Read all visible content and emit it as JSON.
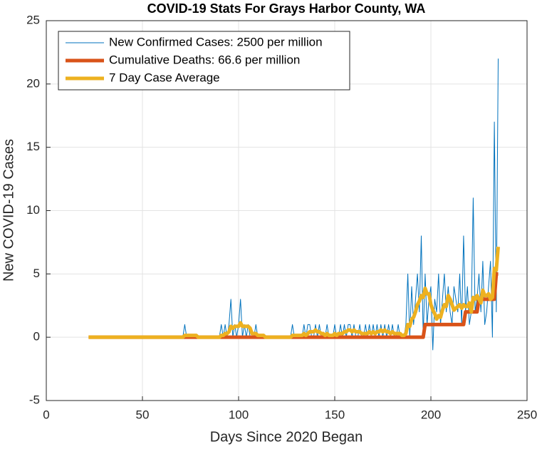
{
  "chart_data": {
    "type": "line",
    "title": "COVID-19 Stats For Grays Harbor County, WA",
    "x_label": "Days Since 2020 Began",
    "y_label": "New COVID-19 Cases",
    "xlim": [
      0,
      250
    ],
    "xticks": [
      0,
      50,
      100,
      150,
      200,
      250
    ],
    "ylim": [
      -5,
      25
    ],
    "yticks": [
      -5,
      0,
      5,
      10,
      15,
      20,
      25
    ],
    "grid": true,
    "legend": "upper left",
    "x": [
      22,
      23,
      24,
      25,
      26,
      27,
      28,
      29,
      30,
      31,
      32,
      33,
      34,
      35,
      36,
      37,
      38,
      39,
      40,
      41,
      42,
      43,
      44,
      45,
      46,
      47,
      48,
      49,
      50,
      51,
      52,
      53,
      54,
      55,
      56,
      57,
      58,
      59,
      60,
      61,
      62,
      63,
      64,
      65,
      66,
      67,
      68,
      69,
      70,
      71,
      72,
      73,
      74,
      75,
      76,
      77,
      78,
      79,
      80,
      81,
      82,
      83,
      84,
      85,
      86,
      87,
      88,
      89,
      90,
      91,
      92,
      93,
      94,
      95,
      96,
      97,
      98,
      99,
      100,
      101,
      102,
      103,
      104,
      105,
      106,
      107,
      108,
      109,
      110,
      111,
      112,
      113,
      114,
      115,
      116,
      117,
      118,
      119,
      120,
      121,
      122,
      123,
      124,
      125,
      126,
      127,
      128,
      129,
      130,
      131,
      132,
      133,
      134,
      135,
      136,
      137,
      138,
      139,
      140,
      141,
      142,
      143,
      144,
      145,
      146,
      147,
      148,
      149,
      150,
      151,
      152,
      153,
      154,
      155,
      156,
      157,
      158,
      159,
      160,
      161,
      162,
      163,
      164,
      165,
      166,
      167,
      168,
      169,
      170,
      171,
      172,
      173,
      174,
      175,
      176,
      177,
      178,
      179,
      180,
      181,
      182,
      183,
      184,
      185,
      186,
      187,
      188,
      189,
      190,
      191,
      192,
      193,
      194,
      195,
      196,
      197,
      198,
      199,
      200,
      201,
      202,
      203,
      204,
      205,
      206,
      207,
      208,
      209,
      210,
      211,
      212,
      213,
      214,
      215,
      216,
      217,
      218,
      219,
      220,
      221,
      222,
      223,
      224,
      225,
      226,
      227,
      228,
      229,
      230,
      231,
      232,
      233,
      234,
      235
    ],
    "series": [
      {
        "name": "New Confirmed Cases: 2500 per million",
        "color": "#0072BD",
        "width": 1,
        "values": [
          0,
          0,
          0,
          0,
          0,
          0,
          0,
          0,
          0,
          0,
          0,
          0,
          0,
          0,
          0,
          0,
          0,
          0,
          0,
          0,
          0,
          0,
          0,
          0,
          0,
          0,
          0,
          0,
          0,
          0,
          0,
          0,
          0,
          0,
          0,
          0,
          0,
          0,
          0,
          0,
          0,
          0,
          0,
          0,
          0,
          0,
          0,
          0,
          0,
          0,
          1,
          0,
          0,
          0,
          0,
          0,
          0,
          0,
          0,
          0,
          0,
          0,
          0,
          0,
          0,
          0,
          0,
          0,
          0,
          1,
          0,
          1,
          0,
          1,
          3,
          0,
          1,
          0,
          1,
          3,
          0,
          1,
          0,
          1,
          0,
          0,
          0,
          1,
          0,
          0,
          0,
          0,
          0,
          0,
          0,
          0,
          0,
          0,
          0,
          0,
          0,
          0,
          0,
          0,
          0,
          0,
          1,
          0,
          0,
          0,
          0,
          0,
          1,
          0,
          1,
          1,
          0,
          0,
          1,
          0,
          1,
          0,
          0,
          0,
          1,
          0,
          0,
          0,
          1,
          0,
          0,
          1,
          0,
          1,
          0,
          1,
          1,
          0,
          1,
          0,
          0,
          1,
          0,
          0,
          1,
          0,
          1,
          0,
          1,
          0,
          1,
          0,
          1,
          0,
          1,
          0,
          1,
          0,
          1,
          0,
          0,
          1,
          0,
          0,
          0,
          1,
          5,
          0,
          4,
          1,
          3,
          5,
          2,
          8,
          0,
          5,
          1,
          3,
          4,
          -1,
          3,
          2,
          5,
          1,
          3,
          5,
          2,
          4,
          2,
          1,
          4,
          3,
          2,
          5,
          1,
          8,
          2,
          4,
          1,
          2,
          11,
          2,
          3,
          5,
          2,
          6,
          1,
          2,
          4,
          6,
          0,
          17,
          2,
          22
        ]
      },
      {
        "name": "Cumulative Deaths: 66.6 per million",
        "color": "#D95319",
        "width": 5,
        "values": [
          0,
          0,
          0,
          0,
          0,
          0,
          0,
          0,
          0,
          0,
          0,
          0,
          0,
          0,
          0,
          0,
          0,
          0,
          0,
          0,
          0,
          0,
          0,
          0,
          0,
          0,
          0,
          0,
          0,
          0,
          0,
          0,
          0,
          0,
          0,
          0,
          0,
          0,
          0,
          0,
          0,
          0,
          0,
          0,
          0,
          0,
          0,
          0,
          0,
          0,
          0,
          0,
          0,
          0,
          0,
          0,
          0,
          0,
          0,
          0,
          0,
          0,
          0,
          0,
          0,
          0,
          0,
          0,
          0,
          0,
          0,
          0,
          0,
          0,
          0,
          0,
          0,
          0,
          0,
          0,
          0,
          0,
          0,
          0,
          0,
          0,
          0,
          0,
          0,
          0,
          0,
          0,
          0,
          0,
          0,
          0,
          0,
          0,
          0,
          0,
          0,
          0,
          0,
          0,
          0,
          0,
          0,
          0,
          0,
          0,
          0,
          0,
          0,
          0,
          0,
          0,
          0,
          0,
          0,
          0,
          0,
          0,
          0,
          0,
          0,
          0,
          0,
          0,
          0,
          0,
          0,
          0,
          0,
          0,
          0,
          0,
          0,
          0,
          0,
          0,
          0,
          0,
          0,
          0,
          0,
          0,
          0,
          0,
          0,
          0,
          0,
          0,
          0,
          0,
          0,
          0,
          0,
          0,
          0,
          0,
          0,
          0,
          0,
          0,
          0,
          0,
          0,
          0,
          0,
          0,
          0,
          0,
          0,
          0,
          0,
          1,
          1,
          1,
          1,
          1,
          1,
          1,
          1,
          1,
          1,
          1,
          1,
          1,
          1,
          1,
          1,
          1,
          1,
          1,
          1,
          1,
          2,
          2,
          2,
          2,
          2,
          2,
          2,
          3,
          3,
          3,
          3,
          3,
          3,
          3,
          3,
          3,
          5,
          5
        ]
      },
      {
        "name": "7 Day Case Average",
        "color": "#EDB120",
        "width": 5,
        "values": [
          0,
          0,
          0,
          0,
          0,
          0,
          0,
          0,
          0,
          0,
          0,
          0,
          0,
          0,
          0,
          0,
          0,
          0,
          0,
          0,
          0,
          0,
          0,
          0,
          0,
          0,
          0,
          0,
          0,
          0,
          0,
          0,
          0,
          0,
          0,
          0,
          0,
          0,
          0,
          0,
          0,
          0,
          0,
          0,
          0,
          0,
          0,
          0,
          0,
          0,
          0.14,
          0.14,
          0.14,
          0.14,
          0.14,
          0.14,
          0.14,
          0,
          0,
          0,
          0,
          0,
          0,
          0,
          0,
          0,
          0,
          0,
          0,
          0.14,
          0.14,
          0.29,
          0.29,
          0.43,
          0.86,
          0.71,
          0.86,
          0.86,
          0.86,
          1.14,
          0.86,
          0.86,
          0.86,
          0.86,
          0.71,
          0.29,
          0.29,
          0.29,
          0.14,
          0.14,
          0.14,
          0.14,
          0,
          0,
          0,
          0,
          0,
          0,
          0,
          0,
          0,
          0,
          0,
          0,
          0,
          0,
          0.14,
          0.14,
          0.14,
          0.14,
          0.14,
          0.14,
          0.29,
          0.14,
          0.29,
          0.43,
          0.43,
          0.43,
          0.57,
          0.43,
          0.43,
          0.29,
          0.29,
          0.14,
          0.29,
          0.14,
          0.14,
          0.14,
          0.29,
          0.14,
          0.29,
          0.29,
          0.29,
          0.43,
          0.43,
          0.57,
          0.57,
          0.43,
          0.57,
          0.43,
          0.43,
          0.43,
          0.29,
          0.29,
          0.29,
          0.29,
          0.43,
          0.29,
          0.43,
          0.29,
          0.43,
          0.43,
          0.57,
          0.43,
          0.57,
          0.43,
          0.43,
          0.29,
          0.43,
          0.29,
          0.29,
          0.29,
          0.29,
          0.14,
          0.14,
          0.29,
          1,
          0.86,
          1.43,
          1.57,
          2,
          2.57,
          2.86,
          3.29,
          3.14,
          3.86,
          3.43,
          3.43,
          2.57,
          2.14,
          1.86,
          1.43,
          1.71,
          1.57,
          2.14,
          2.57,
          2.43,
          3.29,
          3,
          2.57,
          2.14,
          2.29,
          2.43,
          2.57,
          2.29,
          2.57,
          2.43,
          2.43,
          2.71,
          2,
          3.14,
          3,
          3.29,
          3,
          2.71,
          3.71,
          3.29,
          3.29,
          3.43,
          3,
          3.14,
          5.43,
          5.29,
          7.14
        ]
      }
    ]
  }
}
